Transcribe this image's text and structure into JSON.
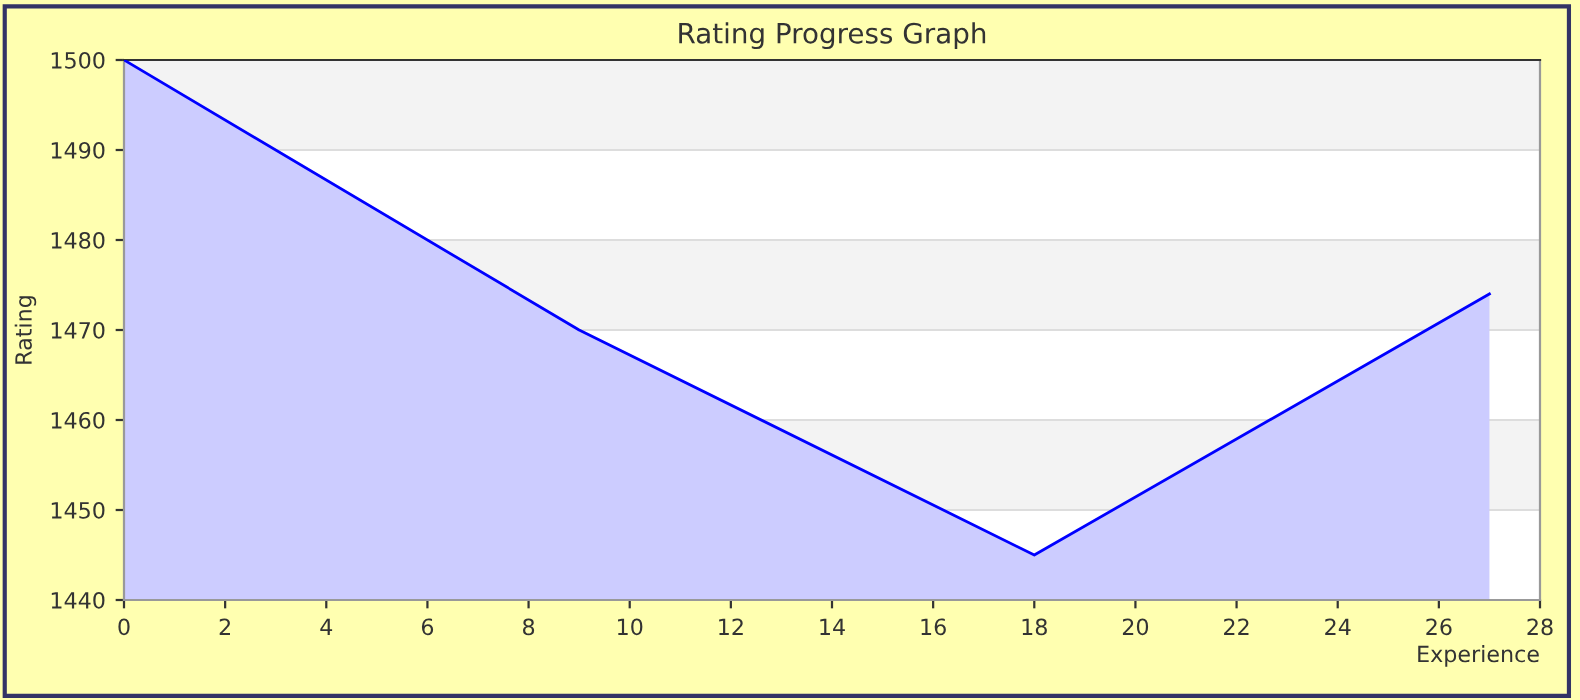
{
  "chart_data": {
    "type": "area",
    "title": "Rating Progress Graph",
    "xlabel": "Experience",
    "ylabel": "Rating",
    "x": [
      0,
      9,
      18,
      27
    ],
    "series": [
      {
        "color": "#0000ff",
        "values": [
          1500,
          1470,
          1445,
          1474
        ]
      }
    ],
    "xlim": [
      0,
      28
    ],
    "xticks": [
      0,
      2,
      4,
      6,
      8,
      10,
      12,
      14,
      16,
      18,
      20,
      22,
      24,
      26,
      28
    ],
    "ylim": [
      1440,
      1500
    ],
    "yticks": [
      1440,
      1450,
      1460,
      1470,
      1480,
      1490,
      1500
    ],
    "grid": "y",
    "marker": "none",
    "line_style": "solid"
  }
}
